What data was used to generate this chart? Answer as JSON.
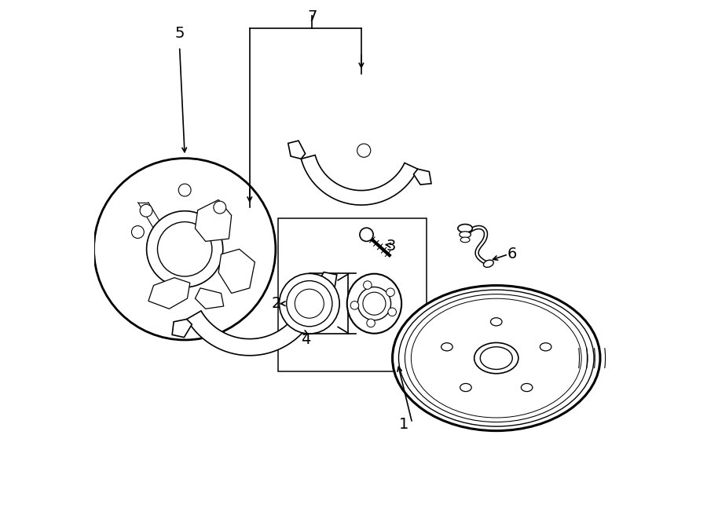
{
  "bg_color": "#ffffff",
  "line_color": "#000000",
  "line_width": 1.2,
  "fig_width": 9.0,
  "fig_height": 6.61
}
